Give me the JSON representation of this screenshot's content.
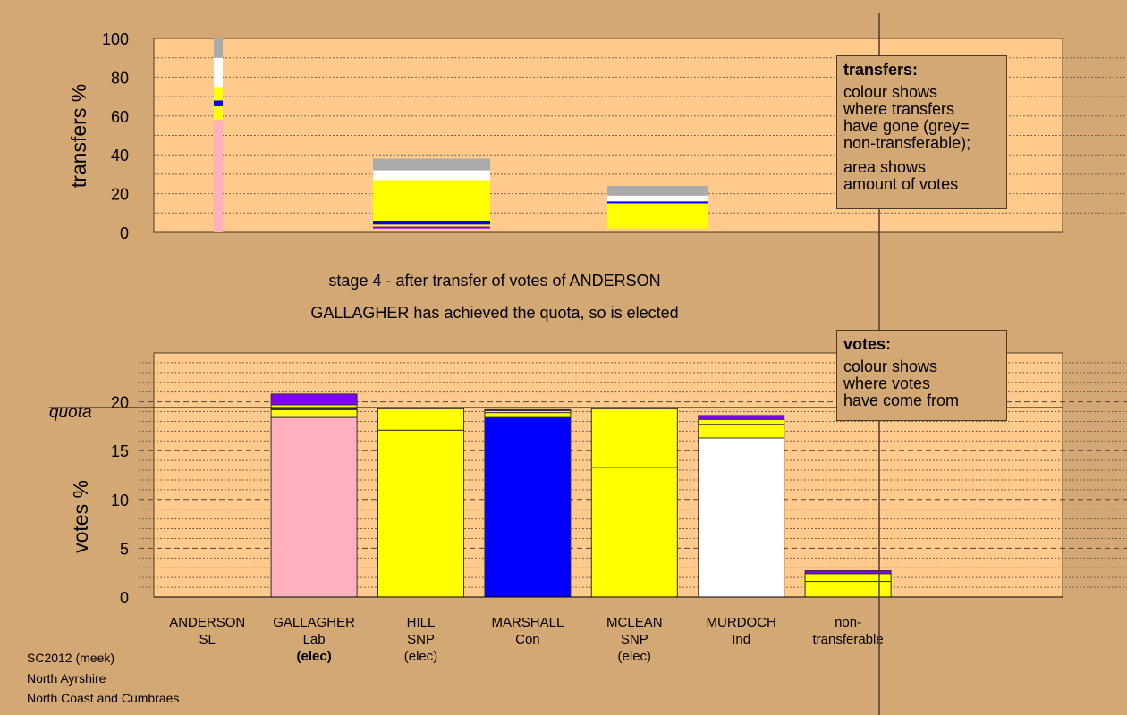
{
  "colors": {
    "background": "#d4a874",
    "plot_bg": "#ffca8c",
    "Lab": "#ffb0c0",
    "SNP": "#ffff00",
    "Con": "#0000ff",
    "Ind": "#ffffff",
    "SL": "#8000ff",
    "nontransferable": "#aaaaaa",
    "quota_line": "#3a2a1a"
  },
  "stage_text": {
    "line1": "stage 4 - after transfer of votes of ANDERSON",
    "line2": "GALLAGHER has achieved the quota, so is elected"
  },
  "footer": {
    "line1": "SC2012 (meek)",
    "line2": "North Ayrshire",
    "line3": "North Coast and Cumbraes"
  },
  "transfers_legend": {
    "title": "transfers:",
    "lines1": [
      "colour shows",
      "where transfers",
      "have gone (grey=",
      "non-transferable);"
    ],
    "lines2": [
      "area shows",
      "amount of votes"
    ]
  },
  "votes_legend": {
    "title": "votes:",
    "lines": [
      "colour shows",
      "where votes",
      "have come from"
    ]
  },
  "chart_data": [
    {
      "type": "bar",
      "ylabel": "transfers %",
      "ylim": [
        0,
        100
      ],
      "yticks": [
        0,
        20,
        40,
        60,
        80,
        100
      ],
      "transfer_blocks": [
        {
          "from": "ANDERSON",
          "segments": [
            {
              "party": "Lab",
              "from": 0,
              "to": 58
            },
            {
              "party": "SNP",
              "from": 58,
              "to": 65
            },
            {
              "party": "Con",
              "from": 65,
              "to": 68
            },
            {
              "party": "SNP",
              "from": 68,
              "to": 75
            },
            {
              "party": "Ind",
              "from": 75,
              "to": 90
            },
            {
              "party": "nontransferable",
              "from": 90,
              "to": 100
            }
          ]
        },
        {
          "from": "GALLAGHER",
          "segments": [
            {
              "party": "SL",
              "from": 2,
              "to": 3
            },
            {
              "party": "SNP",
              "from": 3,
              "to": 4
            },
            {
              "party": "Con",
              "from": 4,
              "to": 6
            },
            {
              "party": "SNP",
              "from": 6,
              "to": 27
            },
            {
              "party": "Ind",
              "from": 27,
              "to": 32
            },
            {
              "party": "nontransferable",
              "from": 32,
              "to": 38
            }
          ]
        },
        {
          "from": "MCLEAN",
          "segments": [
            {
              "party": "SNP",
              "from": 2,
              "to": 15
            },
            {
              "party": "Con",
              "from": 15,
              "to": 16
            },
            {
              "party": "Ind",
              "from": 16,
              "to": 19
            },
            {
              "party": "nontransferable",
              "from": 19,
              "to": 24
            }
          ]
        }
      ]
    },
    {
      "type": "bar",
      "ylabel": "votes %",
      "ylim": [
        0,
        25
      ],
      "yticks": [
        0,
        5,
        10,
        15,
        20
      ],
      "quota_label": "quota",
      "quota": 19.4,
      "categories": [
        {
          "name": "ANDERSON",
          "party": "SL",
          "status": ""
        },
        {
          "name": "GALLAGHER",
          "party": "Lab",
          "status": "(elec)"
        },
        {
          "name": "HILL",
          "party": "SNP",
          "status": "(elec)"
        },
        {
          "name": "MARSHALL",
          "party": "Con",
          "status": ""
        },
        {
          "name": "MCLEAN",
          "party": "SNP",
          "status": "(elec)"
        },
        {
          "name": "MURDOCH",
          "party": "Ind",
          "status": ""
        },
        {
          "name": "non-",
          "party": "transferable",
          "status": ""
        }
      ],
      "stacks": [
        [],
        [
          {
            "party": "Lab",
            "value": 18.4
          },
          {
            "party": "SNP",
            "value": 0.8
          },
          {
            "party": "Con",
            "value": 0.1
          },
          {
            "party": "SNP",
            "value": 0.4
          },
          {
            "party": "SL",
            "value": 1.1
          }
        ],
        [
          {
            "party": "SNP",
            "value": 17.1
          },
          {
            "party": "SNP",
            "value": 2.2
          },
          {
            "party": "SL",
            "value": 0.1
          }
        ],
        [
          {
            "party": "Con",
            "value": 18.4
          },
          {
            "party": "SNP",
            "value": 0.5
          },
          {
            "party": "SNP",
            "value": 0.2
          },
          {
            "party": "SL",
            "value": 0.1
          }
        ],
        [
          {
            "party": "SNP",
            "value": 13.3
          },
          {
            "party": "SNP",
            "value": 6.0
          },
          {
            "party": "SL",
            "value": 0.1
          }
        ],
        [
          {
            "party": "Ind",
            "value": 16.3
          },
          {
            "party": "SNP",
            "value": 1.4
          },
          {
            "party": "SNP",
            "value": 0.5
          },
          {
            "party": "SL",
            "value": 0.4
          }
        ],
        [
          {
            "party": "SNP",
            "value": 1.6
          },
          {
            "party": "SNP",
            "value": 0.8
          },
          {
            "party": "SL",
            "value": 0.3
          }
        ]
      ]
    }
  ]
}
